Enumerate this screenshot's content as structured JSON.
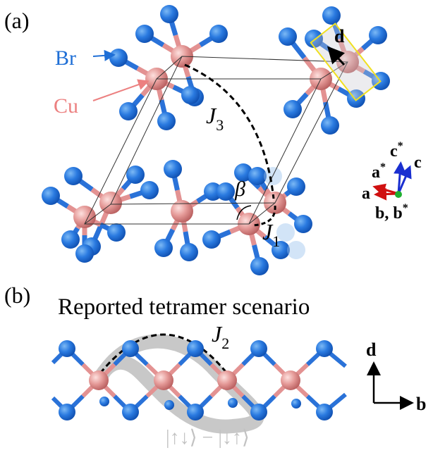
{
  "panel_a": {
    "label": "(a)",
    "br": "Br",
    "cu": "Cu",
    "d": "d",
    "j3": {
      "main": "J",
      "sub": "3"
    },
    "beta": "β",
    "j1": {
      "main": "J",
      "sub": "1"
    },
    "axes": {
      "a_star": {
        "main": "a",
        "sup": "*"
      },
      "a": "a",
      "c_star": {
        "main": "c",
        "sup": "*"
      },
      "c": "c",
      "b_bstar": {
        "main": "b, b",
        "sup": "*"
      }
    }
  },
  "panel_b": {
    "label": "(b)",
    "title": "Reported tetramer scenario",
    "j2": {
      "main": "J",
      "sub": "2"
    },
    "d": "d",
    "b": "b",
    "state": "|↑↓⟩ − |↓↑⟩"
  }
}
